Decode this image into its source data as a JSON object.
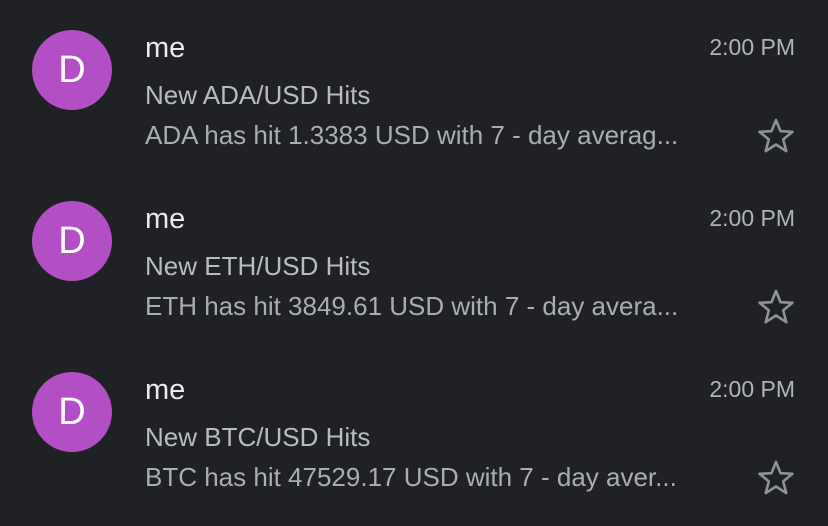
{
  "messages": [
    {
      "avatar_letter": "D",
      "sender": "me",
      "time": "2:00 PM",
      "subject": "New ADA/USD Hits",
      "snippet": "ADA has hit 1.3383 USD with 7 - day averag...",
      "starred": false
    },
    {
      "avatar_letter": "D",
      "sender": "me",
      "time": "2:00 PM",
      "subject": "New ETH/USD Hits",
      "snippet": "ETH has hit 3849.61 USD with 7 - day avera...",
      "starred": false
    },
    {
      "avatar_letter": "D",
      "sender": "me",
      "time": "2:00 PM",
      "subject": "New BTC/USD Hits",
      "snippet": "BTC has hit 47529.17 USD with 7 - day aver...",
      "starred": false
    }
  ],
  "colors": {
    "background": "#202124",
    "avatar": "#b24fc4"
  },
  "icons": {
    "star": "star-outline-icon"
  }
}
